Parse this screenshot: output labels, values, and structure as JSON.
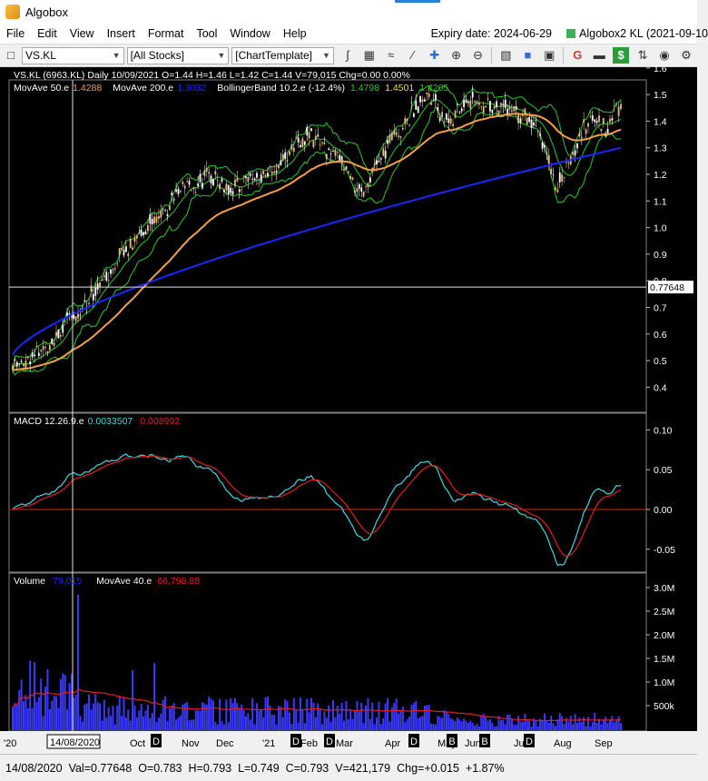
{
  "app": {
    "title": "Algobox",
    "expiry": "Expiry date: 2024-06-29",
    "algobox2": "Algobox2 KL (2021-09-10"
  },
  "menu": [
    "File",
    "Edit",
    "View",
    "Insert",
    "Format",
    "Tool",
    "Window",
    "Help"
  ],
  "toolbar": {
    "symbol": "VS.KL",
    "stocks": "[All Stocks]",
    "template": "[ChartTemplate]"
  },
  "header": {
    "line1": "VS.KL (6963.KL) Daily  10/09/2021   O=1.44   H=1.46   L=1.42   C=1.44   V=79,015   Chg=0.00   0.00%",
    "ma50_label": "MovAve 50.e",
    "ma50_val": "1.4288",
    "ma200_label": "MovAve 200.e",
    "ma200_val": "1.3032",
    "bb_label": "BollingerBand 10.2.e (-12.4%)",
    "bb_up": "1.4798",
    "bb_mid": "1.4501",
    "bb_low": "1.4205"
  },
  "macd": {
    "label": "MACD 12.26.9.e",
    "val1": "0.0033507",
    "val2": "0.008992"
  },
  "volume": {
    "label": "Volume",
    "val": "79,015",
    "ma_label": "MovAve 40.e",
    "ma_val": "66,798.88"
  },
  "crosshair": {
    "price": "0.77648",
    "date": "14/08/2020"
  },
  "price_axis": [
    "1.6",
    "1.5",
    "1.4",
    "1.3",
    "1.2",
    "1.1",
    "1.0",
    "0.9",
    "0.8",
    "0.7",
    "0.6",
    "0.5",
    "0.4"
  ],
  "macd_axis": [
    "0.10",
    "0.05",
    "0.00",
    "-0.05"
  ],
  "volume_axis": [
    "3.0M",
    "2.5M",
    "2.0M",
    "1.5M",
    "1.0M",
    "500k"
  ],
  "date_axis": [
    "'20",
    "Oct",
    "Nov",
    "Dec",
    "'21",
    "Feb",
    "Mar",
    "Apr",
    "May",
    "Jun",
    "Jul",
    "Aug",
    "Sep"
  ],
  "markers": [
    "D",
    "D",
    "D",
    "D",
    "B",
    "B",
    "D"
  ],
  "status": {
    "date": "14/08/2020",
    "val": "Val=0.77648",
    "o": "O=0.783",
    "h": "H=0.793",
    "l": "L=0.749",
    "c": "C=0.793",
    "v": "V=421,179",
    "chg": "Chg=+0.015",
    "pct": "+1.87%"
  },
  "colors": {
    "bg": "#000000",
    "up": "#ffffff",
    "down": "#e0c080",
    "bb": "#28c828",
    "ma50": "#f5a04a",
    "ma200": "#1a28ff",
    "macd": "#40d8e0",
    "signal": "#e02020",
    "volbar": "#3a3aff",
    "volma": "#e02020"
  }
}
